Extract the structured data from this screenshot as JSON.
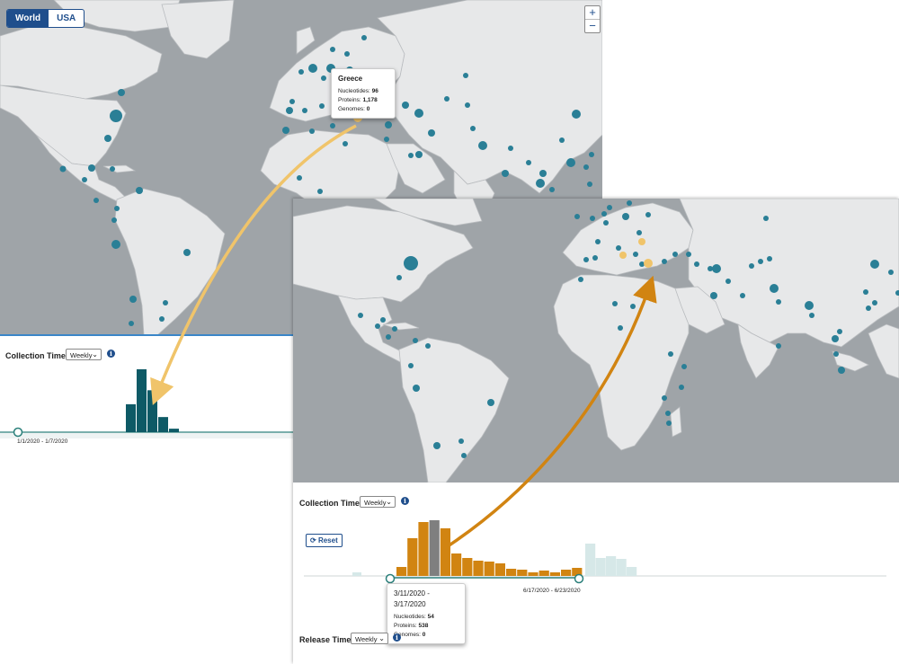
{
  "left_panel": {
    "map_toggle": {
      "world_label": "World",
      "usa_label": "USA",
      "selected": "World"
    },
    "zoom": {
      "in_label": "+",
      "out_label": "−"
    },
    "tooltip": {
      "title": "Greece",
      "rows": [
        {
          "label": "Nucleotides: ",
          "value": "96"
        },
        {
          "label": "Proteins: ",
          "value": "1,178"
        },
        {
          "label": "Genomes: ",
          "value": "0"
        }
      ]
    },
    "collection_time": {
      "label": "Collection Time",
      "interval": "Weekly",
      "range_label": "1/1/2020 - 1/7/2020"
    }
  },
  "right_panel": {
    "collection_time": {
      "label": "Collection Time",
      "interval": "Weekly",
      "reset_label": "Reset",
      "range_end_label": "6/17/2020 - 6/23/2020",
      "tooltip": {
        "title": "3/11/2020 - 3/17/2020",
        "rows": [
          {
            "label": "Nucleotides: ",
            "value": "54"
          },
          {
            "label": "Proteins: ",
            "value": "538"
          },
          {
            "label": "Genomes: ",
            "value": "0"
          }
        ]
      }
    },
    "release_time": {
      "label": "Release Time",
      "interval": "Weekly"
    }
  },
  "colors": {
    "sea": "#9fa4a8",
    "land": "#e7e8e9",
    "marker": "#2a7f96",
    "highlight": "#f0c46a",
    "teal_bar": "#0e5a66",
    "orange_bar": "#d18412",
    "selected_bar": "#7f7f7f",
    "faded_bar": "#d6e8e8",
    "accent": "#1f4e8c"
  },
  "icons": {
    "info": "info-icon",
    "reset": "refresh-icon",
    "dropdown": "chevron-down-icon"
  },
  "chart_data": [
    {
      "type": "bar",
      "series": [
        {
          "values": [
            0,
            0,
            0,
            0,
            0,
            0,
            0,
            0,
            0,
            0,
            0,
            0,
            0,
            0,
            0,
            0,
            0,
            0,
            0,
            0,
            48,
            108,
            72,
            26,
            6,
            0,
            0,
            0,
            0,
            0,
            0,
            0,
            0,
            0,
            0,
            0,
            0,
            0,
            0,
            0,
            0,
            0,
            0,
            0,
            0,
            0,
            0,
            0,
            0,
            0
          ]
        }
      ]
    },
    {
      "type": "bar",
      "series": [
        {
          "values": [
            0,
            0,
            0,
            0,
            0,
            0,
            0,
            0,
            0,
            0,
            0,
            0,
            0,
            0,
            0,
            0,
            0,
            0,
            0,
            0,
            0,
            0,
            0,
            0,
            0,
            0,
            0,
            0,
            0,
            0,
            0,
            0,
            0,
            0,
            0,
            0,
            0,
            0,
            0,
            0,
            0,
            0,
            0,
            0,
            0,
            0,
            0,
            0,
            0,
            0,
            0,
            0,
            0,
            0,
            0,
            0
          ]
        },
        {
          "values": [
            0,
            0,
            0,
            0,
            0,
            0,
            0,
            0,
            0,
            0,
            0,
            0,
            0,
            0,
            0,
            0,
            0,
            0,
            0,
            0,
            0,
            0,
            0,
            0,
            0,
            0,
            0,
            0,
            0,
            0,
            0,
            0,
            0,
            0,
            0,
            0,
            0,
            0,
            0,
            0,
            0,
            0,
            0,
            0,
            0,
            0,
            0,
            0,
            0,
            0,
            0,
            0,
            0,
            0,
            0,
            0
          ]
        }
      ],
      "bars": [
        {
          "value": 10,
          "state": "selected"
        },
        {
          "value": 42,
          "state": "in-range"
        },
        {
          "value": 60,
          "state": "in-range"
        },
        {
          "value": 62,
          "state": "selected"
        },
        {
          "value": 53,
          "state": "in-range"
        },
        {
          "value": 25,
          "state": "in-range"
        },
        {
          "value": 20,
          "state": "in-range"
        },
        {
          "value": 17,
          "state": "in-range"
        },
        {
          "value": 16,
          "state": "in-range"
        },
        {
          "value": 14,
          "state": "in-range"
        },
        {
          "value": 8,
          "state": "in-range"
        },
        {
          "value": 7,
          "state": "in-range"
        },
        {
          "value": 4,
          "state": "in-range"
        },
        {
          "value": 6,
          "state": "in-range"
        },
        {
          "value": 4,
          "state": "in-range"
        },
        {
          "value": 7,
          "state": "in-range"
        },
        {
          "value": 9,
          "state": "in-range"
        },
        {
          "value": 36,
          "state": "out-of-range"
        },
        {
          "value": 20,
          "state": "out-of-range"
        },
        {
          "value": 22,
          "state": "out-of-range"
        },
        {
          "value": 19,
          "state": "out-of-range"
        },
        {
          "value": 10,
          "state": "out-of-range"
        }
      ],
      "pre_range_bar": {
        "value": 4,
        "state": "out-of-range"
      }
    }
  ]
}
